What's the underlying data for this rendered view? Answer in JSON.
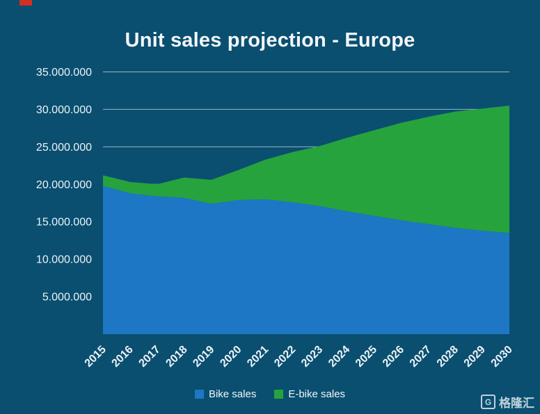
{
  "colors": {
    "background": "#0a4f70",
    "bike": "#1d77c4",
    "ebike": "#27a33d",
    "grid": "#cdd7de",
    "text": "#eef3f7",
    "red_mark": "#d32f27"
  },
  "watermark": {
    "text": "格隆汇",
    "logo_letter": "G"
  },
  "chart_data": {
    "type": "area",
    "stacked": true,
    "title": "Unit sales projection - Europe",
    "x": [
      2015,
      2016,
      2017,
      2018,
      2019,
      2020,
      2021,
      2022,
      2023,
      2024,
      2025,
      2026,
      2027,
      2028,
      2029,
      2030
    ],
    "series": [
      {
        "name": "Bike sales",
        "color_key": "bike",
        "values": [
          19800000,
          18800000,
          18400000,
          18200000,
          17400000,
          17900000,
          18000000,
          17600000,
          17100000,
          16400000,
          15800000,
          15200000,
          14700000,
          14200000,
          13800000,
          13500000
        ]
      },
      {
        "name": "E-bike sales",
        "color_key": "ebike",
        "values": [
          1400000,
          1500000,
          1600000,
          2700000,
          3200000,
          4000000,
          5300000,
          6700000,
          8000000,
          9800000,
          11400000,
          13000000,
          14300000,
          15500000,
          16300000,
          17000000
        ]
      }
    ],
    "ylim": [
      0,
      35000000
    ],
    "yticks": [
      {
        "v": 5000000,
        "label": "5.000.000"
      },
      {
        "v": 10000000,
        "label": "10.000.000"
      },
      {
        "v": 15000000,
        "label": "15.000.000"
      },
      {
        "v": 20000000,
        "label": "20.000.000"
      },
      {
        "v": 25000000,
        "label": "25.000.000"
      },
      {
        "v": 30000000,
        "label": "30.000.000"
      },
      {
        "v": 35000000,
        "label": "35.000.000"
      }
    ],
    "grid": true,
    "legend_position": "bottom"
  }
}
